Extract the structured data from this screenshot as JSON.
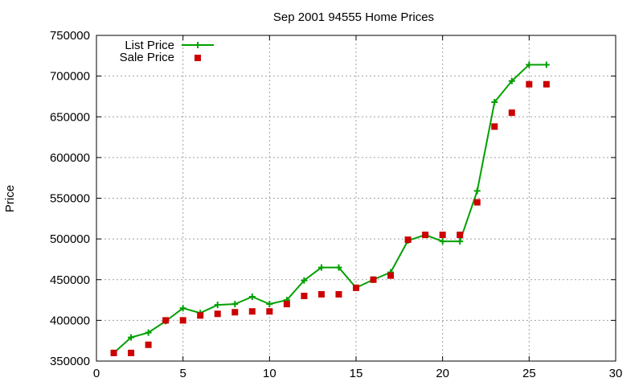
{
  "chart_data": {
    "type": "line",
    "title": "Sep 2001 94555 Home Prices",
    "xlabel": "",
    "ylabel": "Price",
    "xlim": [
      0,
      30
    ],
    "ylim": [
      350000,
      750000
    ],
    "x_ticks": [
      0,
      5,
      10,
      15,
      20,
      25,
      30
    ],
    "y_ticks": [
      350000,
      400000,
      450000,
      500000,
      550000,
      600000,
      650000,
      700000,
      750000
    ],
    "x_tick_labels": [
      "0",
      "5",
      "10",
      "15",
      "20",
      "25",
      "30"
    ],
    "y_tick_labels": [
      "350000",
      "400000",
      "450000",
      "500000",
      "550000",
      "600000",
      "650000",
      "700000",
      "750000"
    ],
    "grid": true,
    "legend_position": "top-left",
    "series": [
      {
        "name": "List Price",
        "style": "line-with-plus-markers",
        "color": "#00a000",
        "x": [
          1,
          2,
          3,
          4,
          5,
          6,
          7,
          8,
          9,
          10,
          11,
          12,
          13,
          14,
          15,
          16,
          17,
          18,
          19,
          20,
          21,
          22,
          23,
          24,
          25,
          26
        ],
        "y": [
          360000,
          379000,
          385000,
          399000,
          415000,
          409000,
          419000,
          420000,
          429000,
          420000,
          425000,
          449000,
          465000,
          465000,
          440000,
          450000,
          459000,
          498000,
          505000,
          497000,
          497000,
          559000,
          668000,
          694000,
          714000,
          714000
        ]
      },
      {
        "name": "Sale Price",
        "style": "square-markers",
        "color": "#cc0000",
        "x": [
          1,
          2,
          3,
          4,
          5,
          6,
          7,
          8,
          9,
          10,
          11,
          12,
          13,
          14,
          15,
          16,
          17,
          18,
          19,
          20,
          21,
          22,
          23,
          24,
          25,
          26
        ],
        "y": [
          360000,
          360000,
          370000,
          400000,
          400000,
          406000,
          408000,
          410000,
          411000,
          411000,
          420000,
          430000,
          432000,
          432000,
          440000,
          450000,
          455000,
          499000,
          505000,
          505000,
          505000,
          545000,
          638000,
          655000,
          690000,
          690000
        ]
      }
    ]
  }
}
